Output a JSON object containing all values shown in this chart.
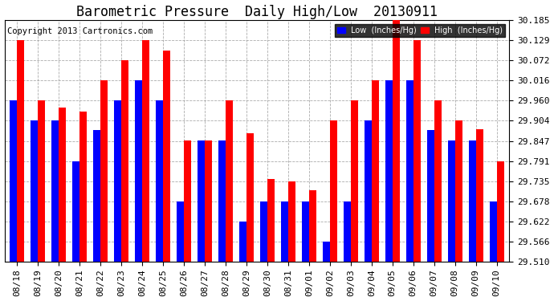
{
  "title": "Barometric Pressure  Daily High/Low  20130911",
  "copyright": "Copyright 2013 Cartronics.com",
  "ylim": [
    29.51,
    30.185
  ],
  "yticks": [
    29.51,
    29.566,
    29.622,
    29.678,
    29.735,
    29.791,
    29.847,
    29.904,
    29.96,
    30.016,
    30.072,
    30.129,
    30.185
  ],
  "dates": [
    "08/18",
    "08/19",
    "08/20",
    "08/21",
    "08/22",
    "08/23",
    "08/24",
    "08/25",
    "08/26",
    "08/27",
    "08/28",
    "08/29",
    "08/30",
    "08/31",
    "09/01",
    "09/02",
    "09/03",
    "09/04",
    "09/05",
    "09/06",
    "09/07",
    "09/08",
    "09/09",
    "09/10"
  ],
  "low": [
    29.96,
    29.904,
    29.904,
    29.791,
    29.878,
    29.96,
    30.016,
    29.96,
    29.678,
    29.848,
    29.848,
    29.622,
    29.678,
    29.678,
    29.678,
    29.566,
    29.678,
    29.904,
    30.016,
    30.016,
    29.878,
    29.848,
    29.848,
    29.678
  ],
  "high": [
    30.129,
    29.96,
    29.94,
    29.93,
    30.016,
    30.072,
    30.129,
    30.1,
    29.848,
    29.848,
    29.96,
    29.87,
    29.74,
    29.735,
    29.71,
    29.904,
    29.96,
    30.016,
    30.185,
    30.129,
    29.96,
    29.904,
    29.88,
    29.791
  ],
  "bar_width": 0.35,
  "low_color": "#0000ff",
  "high_color": "#ff0000",
  "bg_color": "#ffffff",
  "grid_color": "#888888",
  "title_fontsize": 12,
  "tick_fontsize": 8,
  "copyright_fontsize": 7.5
}
